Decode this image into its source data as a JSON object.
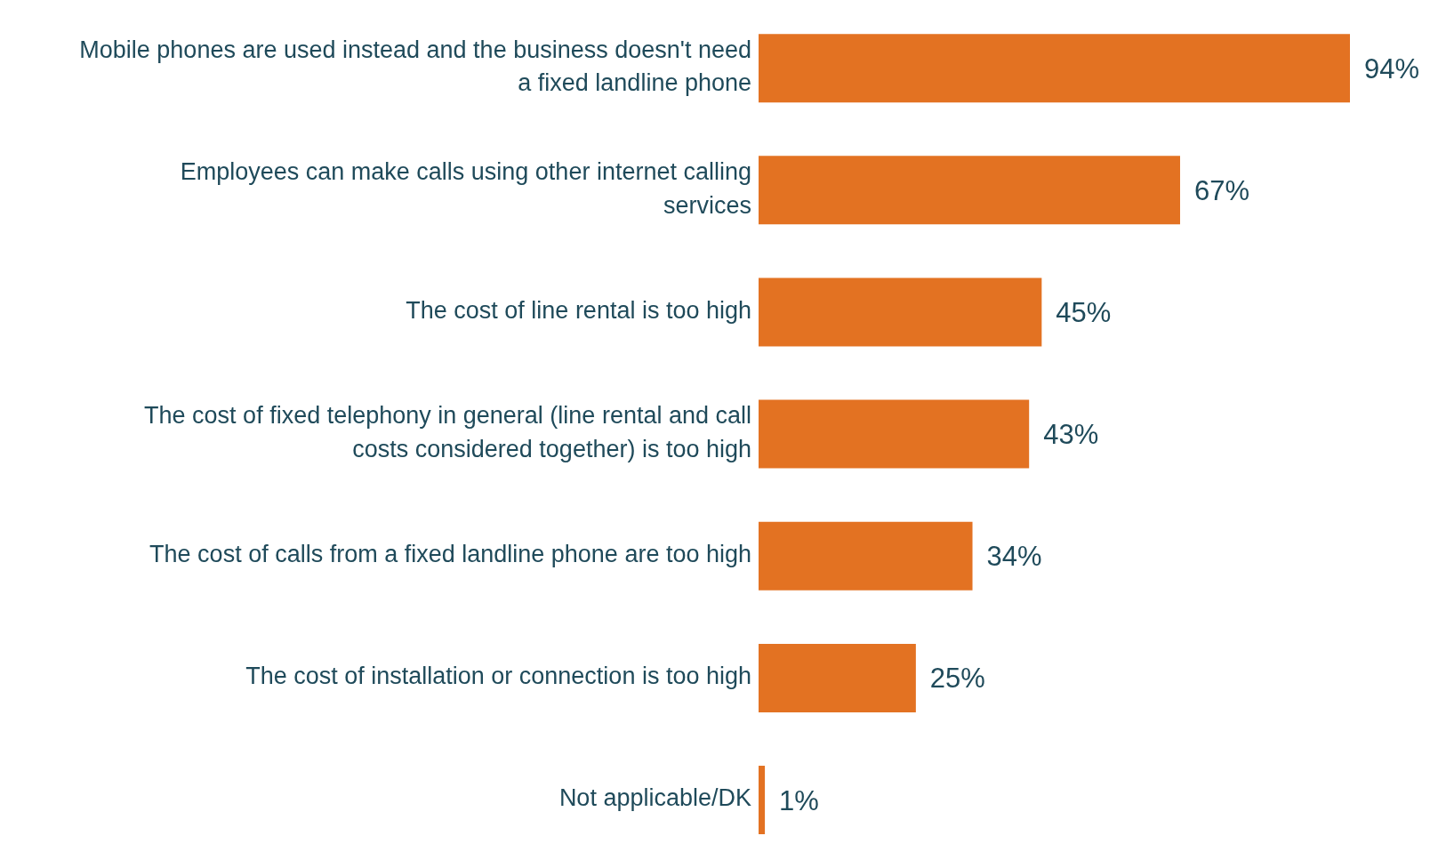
{
  "chart_data": {
    "type": "bar",
    "orientation": "horizontal",
    "categories": [
      "Mobile phones are used instead and the business doesn't need a fixed landline phone",
      "Employees can make calls using other internet calling services",
      "The cost of line rental is too high",
      "The cost of fixed telephony in general (line rental and call costs considered together) is too high",
      "The cost of calls from a fixed landline phone are too high",
      "The cost of installation or connection is too high",
      "Not applicable/DK"
    ],
    "values": [
      94,
      67,
      45,
      43,
      34,
      25,
      1
    ],
    "value_labels": [
      "94%",
      "67%",
      "45%",
      "43%",
      "34%",
      "25%",
      "1%"
    ],
    "color": "#e37222"
  }
}
